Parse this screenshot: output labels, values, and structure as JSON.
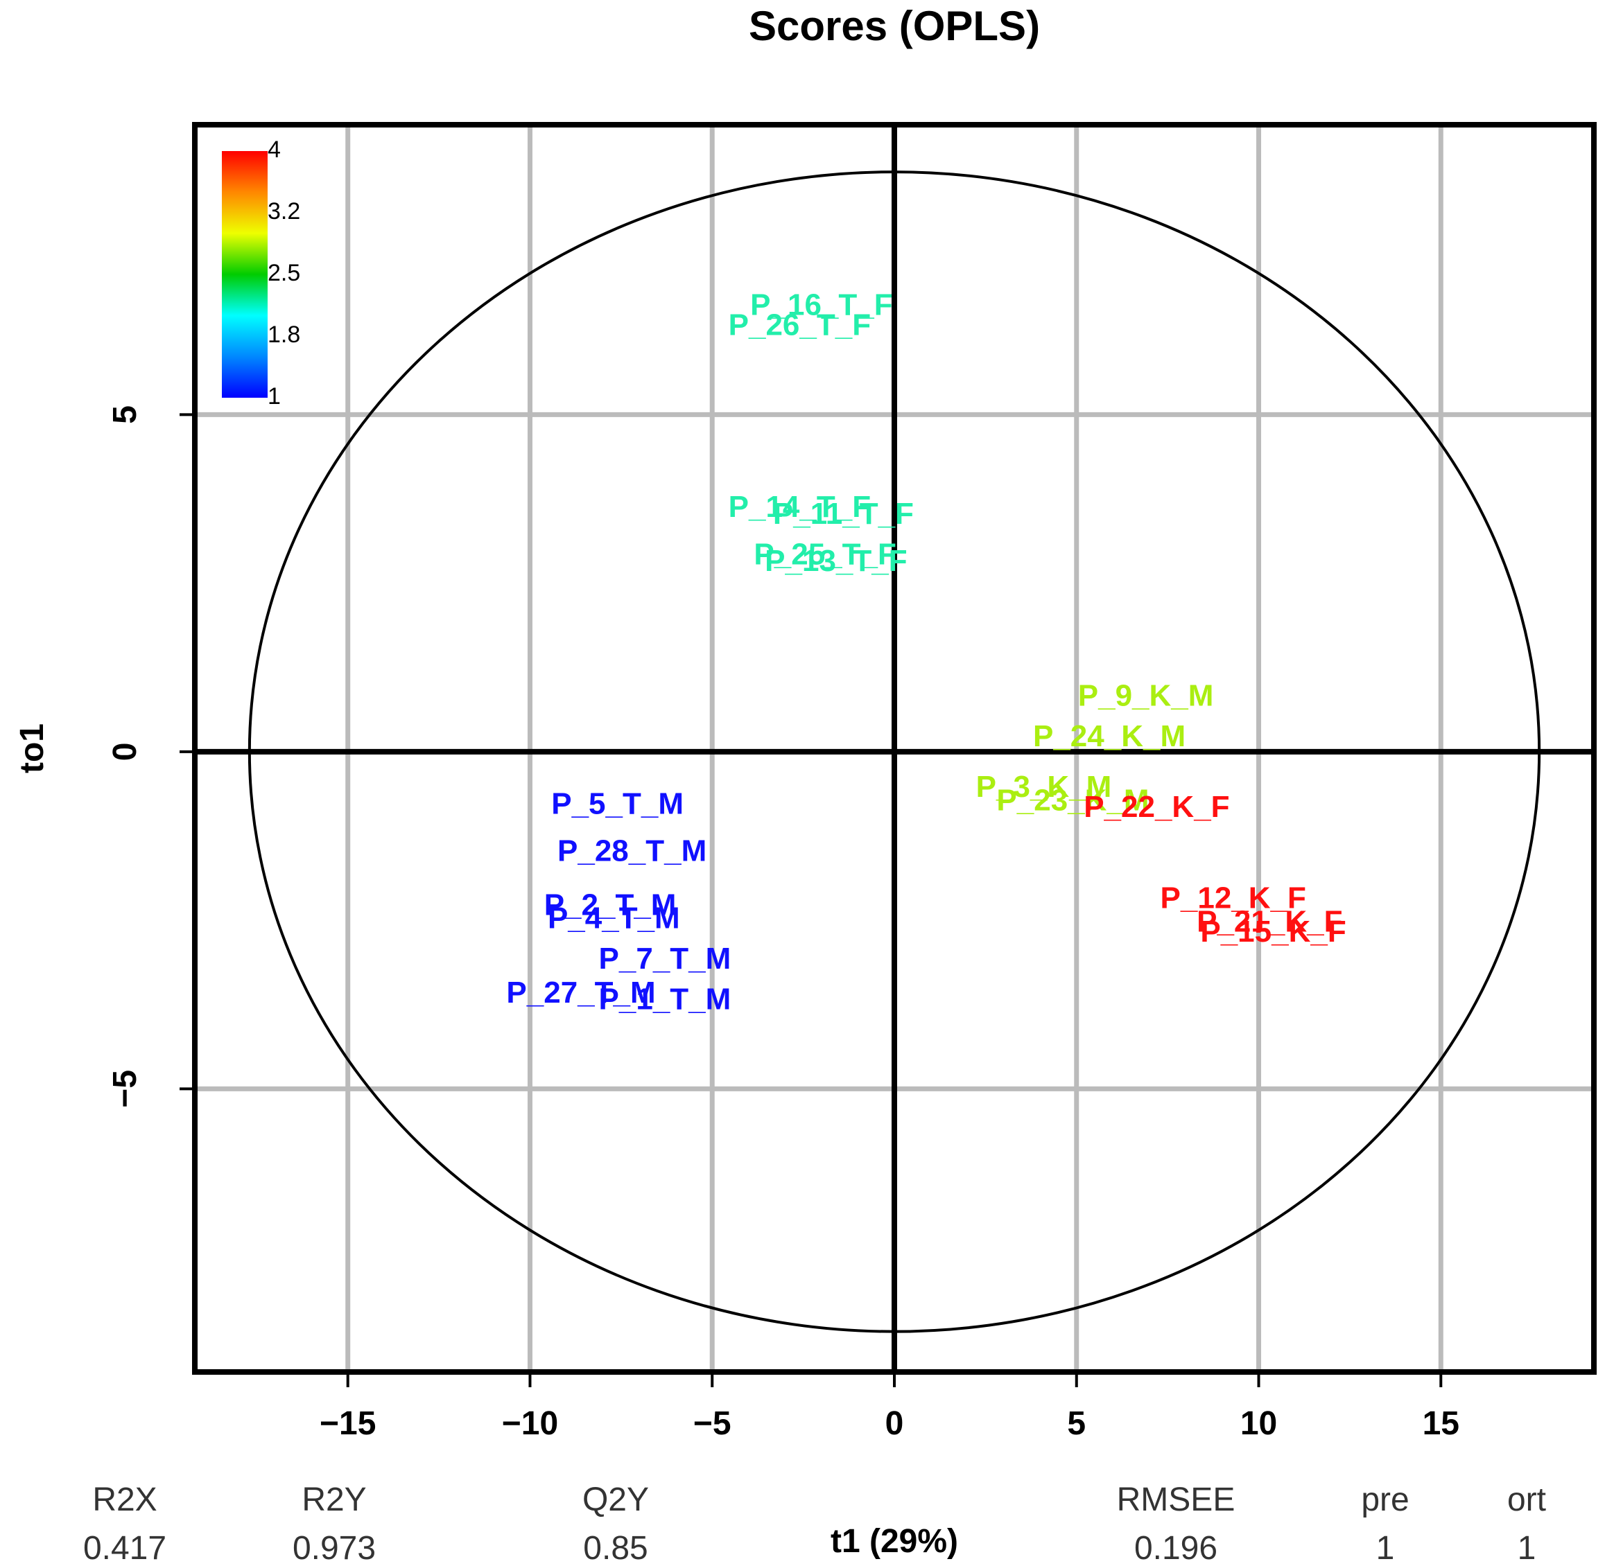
{
  "chart_data": {
    "type": "scatter",
    "title": "Scores (OPLS)",
    "xlabel": "t1 (29%)",
    "ylabel": "to1",
    "xlim": [
      -19.2,
      19.2
    ],
    "ylim": [
      -9.2,
      9.3
    ],
    "xticks": [
      -15,
      -10,
      -5,
      0,
      5,
      10,
      15
    ],
    "yticks": [
      -5,
      0,
      5
    ],
    "xtick_labels": [
      "−15",
      "−10",
      "−5",
      "0",
      "5",
      "10",
      "15"
    ],
    "ytick_labels": [
      "−5",
      "0",
      "5"
    ],
    "grid": true,
    "ellipse": {
      "rx": 17.7,
      "ry": 8.6
    },
    "legend": {
      "position": "top-left",
      "type": "colorbar",
      "ticks": [
        "4",
        "3.2",
        "2.5",
        "1.8",
        "1"
      ],
      "colors": [
        "#ff0000",
        "#ff8800",
        "#eeff00",
        "#00cc00",
        "#00ffff",
        "#0088ff",
        "#0000ff"
      ]
    },
    "groups": [
      {
        "name": "T_M",
        "color": "#1010ff",
        "points": [
          {
            "label": "P_5_T_M",
            "x": -7.6,
            "y": -0.8
          },
          {
            "label": "P_28_T_M",
            "x": -7.2,
            "y": -1.5
          },
          {
            "label": "P_2_T_M",
            "x": -7.8,
            "y": -2.3
          },
          {
            "label": "P_4_T_M",
            "x": -7.7,
            "y": -2.5
          },
          {
            "label": "P_7_T_M",
            "x": -6.3,
            "y": -3.1
          },
          {
            "label": "P_27_T_M",
            "x": -8.6,
            "y": -3.6
          },
          {
            "label": "P_1_T_M",
            "x": -6.3,
            "y": -3.7
          }
        ]
      },
      {
        "name": "T_F",
        "color": "#22eeaa",
        "points": [
          {
            "label": "P_16_T_F",
            "x": -2.0,
            "y": 6.6
          },
          {
            "label": "P_26_T_F",
            "x": -2.6,
            "y": 6.3
          },
          {
            "label": "P_14_T_F",
            "x": -2.6,
            "y": 3.6
          },
          {
            "label": "P_11_T_F",
            "x": -1.4,
            "y": 3.5
          },
          {
            "label": "P_25_T_F",
            "x": -1.9,
            "y": 2.9
          },
          {
            "label": "P_13_T_F",
            "x": -1.6,
            "y": 2.8
          }
        ]
      },
      {
        "name": "K_M",
        "color": "#aaee11",
        "points": [
          {
            "label": "P_9_K_M",
            "x": 6.9,
            "y": 0.8
          },
          {
            "label": "P_24_K_M",
            "x": 5.9,
            "y": 0.2
          },
          {
            "label": "P_3_K_M",
            "x": 4.1,
            "y": -0.55
          },
          {
            "label": "P_23_K_M",
            "x": 4.9,
            "y": -0.75
          }
        ]
      },
      {
        "name": "K_F",
        "color": "#ff1010",
        "points": [
          {
            "label": "P_22_K_F",
            "x": 7.2,
            "y": -0.85
          },
          {
            "label": "P_12_K_F",
            "x": 9.3,
            "y": -2.2
          },
          {
            "label": "P_21_K_F",
            "x": 10.3,
            "y": -2.55
          },
          {
            "label": "P_15_K_F",
            "x": 10.4,
            "y": -2.7
          }
        ]
      }
    ]
  },
  "stats": [
    {
      "name": "R2X",
      "value": "0.417"
    },
    {
      "name": "R2Y",
      "value": "0.973"
    },
    {
      "name": "Q2Y",
      "value": "0.85"
    },
    {
      "name": "RMSEE",
      "value": "0.196"
    },
    {
      "name": "pre",
      "value": "1"
    },
    {
      "name": "ort",
      "value": "1"
    }
  ]
}
